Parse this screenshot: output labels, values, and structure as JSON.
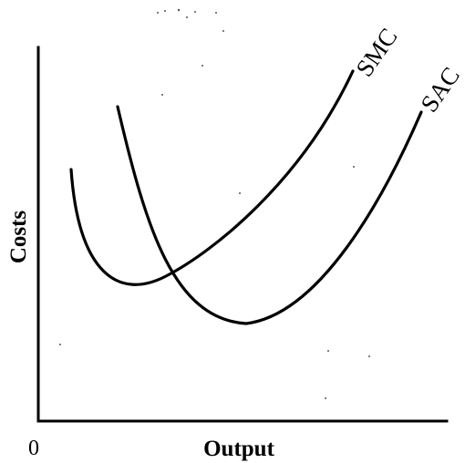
{
  "diagram": {
    "x_axis_label": "Output",
    "y_axis_label": "Costs",
    "origin_label": "0",
    "curves": [
      {
        "name": "SMC"
      },
      {
        "name": "SAC"
      }
    ],
    "colors": {
      "ink": "#000000",
      "background": "#ffffff"
    }
  }
}
